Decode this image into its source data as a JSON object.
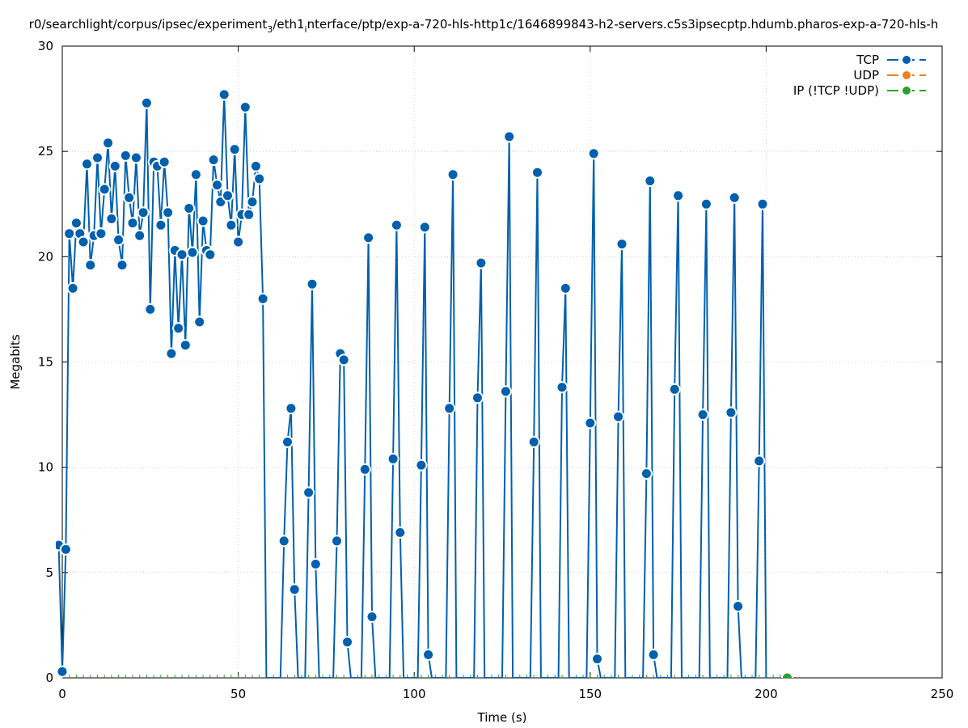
{
  "chart_data": {
    "type": "line",
    "title": "r0/searchlight/corpus/ipsec/experiment",
    "title_sub_1": "3",
    "title_mid": "/eth1",
    "title_sub_2": "i",
    "title_rest": "nterface/ptp/exp-a-720-hls-http1c/1646899843-h2-servers.c5s3ipsecptp.hdumb.pharos-exp-a-720-hls-h",
    "xlabel": "Time (s)",
    "ylabel": "Megabits",
    "xlim": [
      0,
      250
    ],
    "ylim": [
      0,
      30
    ],
    "x_ticks": [
      "0",
      "50",
      "100",
      "150",
      "200",
      "250"
    ],
    "y_ticks": [
      "0",
      "5",
      "10",
      "15",
      "20",
      "25",
      "30"
    ],
    "grid": true,
    "legend_position": "top-right",
    "colors": {
      "tcp": "#0060ad",
      "udp": "#f07f1c",
      "ip": "#2ca02c"
    },
    "series": [
      {
        "name": "TCP",
        "points": [
          [
            -1,
            6.3
          ],
          [
            0,
            0.3
          ],
          [
            1,
            6.1
          ],
          [
            2,
            21.1
          ],
          [
            3,
            18.5
          ],
          [
            4,
            21.6
          ],
          [
            5,
            21.1
          ],
          [
            6,
            20.7
          ],
          [
            7,
            24.4
          ],
          [
            8,
            19.6
          ],
          [
            9,
            21
          ],
          [
            10,
            24.7
          ],
          [
            11,
            21.1
          ],
          [
            12,
            23.2
          ],
          [
            13,
            25.4
          ],
          [
            14,
            21.8
          ],
          [
            15,
            24.3
          ],
          [
            16,
            20.8
          ],
          [
            17,
            19.6
          ],
          [
            18,
            24.8
          ],
          [
            19,
            22.8
          ],
          [
            20,
            21.6
          ],
          [
            21,
            24.7
          ],
          [
            22,
            21
          ],
          [
            23,
            22.1
          ],
          [
            24,
            27.3
          ],
          [
            25,
            17.5
          ],
          [
            26,
            24.5
          ],
          [
            27,
            24.3
          ],
          [
            28,
            21.5
          ],
          [
            29,
            24.5
          ],
          [
            30,
            22.1
          ],
          [
            31,
            15.4
          ],
          [
            32,
            20.3
          ],
          [
            33,
            16.6
          ],
          [
            34,
            20.1
          ],
          [
            35,
            15.8
          ],
          [
            36,
            22.3
          ],
          [
            37,
            20.2
          ],
          [
            38,
            23.9
          ],
          [
            39,
            16.9
          ],
          [
            40,
            21.7
          ],
          [
            41,
            20.3
          ],
          [
            42,
            20.1
          ],
          [
            43,
            24.6
          ],
          [
            44,
            23.4
          ],
          [
            45,
            22.6
          ],
          [
            46,
            27.7
          ],
          [
            47,
            22.9
          ],
          [
            48,
            21.5
          ],
          [
            49,
            25.1
          ],
          [
            50,
            20.7
          ],
          [
            51,
            22
          ],
          [
            52,
            27.1
          ],
          [
            53,
            22
          ],
          [
            54,
            22.6
          ],
          [
            55,
            24.3
          ],
          [
            56,
            23.7
          ],
          [
            57,
            18
          ],
          [
            58,
            0
          ],
          [
            62,
            0
          ],
          [
            63,
            6.5
          ],
          [
            64,
            11.2
          ],
          [
            65,
            12.8
          ],
          [
            66,
            4.2
          ],
          [
            67,
            0
          ],
          [
            69,
            0
          ],
          [
            70,
            8.8
          ],
          [
            71,
            18.7
          ],
          [
            72,
            5.4
          ],
          [
            73,
            0
          ],
          [
            77,
            0
          ],
          [
            78,
            6.5
          ],
          [
            79,
            15.4
          ],
          [
            80,
            15.1
          ],
          [
            81,
            1.7
          ],
          [
            82,
            0
          ],
          [
            85,
            0
          ],
          [
            86,
            9.9
          ],
          [
            87,
            20.9
          ],
          [
            88,
            2.9
          ],
          [
            89,
            0
          ],
          [
            93,
            0
          ],
          [
            94,
            10.4
          ],
          [
            95,
            21.5
          ],
          [
            96,
            6.9
          ],
          [
            97,
            0
          ],
          [
            101,
            0
          ],
          [
            102,
            10.1
          ],
          [
            103,
            21.4
          ],
          [
            104,
            1.1
          ],
          [
            105,
            0
          ],
          [
            109,
            0
          ],
          [
            110,
            12.8
          ],
          [
            111,
            23.9
          ],
          [
            112,
            0
          ],
          [
            117,
            0
          ],
          [
            118,
            13.3
          ],
          [
            119,
            19.7
          ],
          [
            120,
            0
          ],
          [
            125,
            0
          ],
          [
            126,
            13.6
          ],
          [
            127,
            25.7
          ],
          [
            128,
            0
          ],
          [
            133,
            0
          ],
          [
            134,
            11.2
          ],
          [
            135,
            24
          ],
          [
            136,
            0
          ],
          [
            141,
            0
          ],
          [
            142,
            13.8
          ],
          [
            143,
            18.5
          ],
          [
            144,
            0
          ],
          [
            149,
            0
          ],
          [
            150,
            12.1
          ],
          [
            151,
            24.9
          ],
          [
            152,
            0.9
          ],
          [
            153,
            0
          ],
          [
            157,
            0
          ],
          [
            158,
            12.4
          ],
          [
            159,
            20.6
          ],
          [
            160,
            0
          ],
          [
            165,
            0
          ],
          [
            166,
            9.7
          ],
          [
            167,
            23.6
          ],
          [
            168,
            1.1
          ],
          [
            169,
            0
          ],
          [
            173,
            0
          ],
          [
            174,
            13.7
          ],
          [
            175,
            22.9
          ],
          [
            176,
            0
          ],
          [
            181,
            0
          ],
          [
            182,
            12.5
          ],
          [
            183,
            22.5
          ],
          [
            184,
            0
          ],
          [
            189,
            0
          ],
          [
            190,
            12.6
          ],
          [
            191,
            22.8
          ],
          [
            192,
            3.4
          ],
          [
            193,
            0
          ],
          [
            197,
            0
          ],
          [
            198,
            10.3
          ],
          [
            199,
            22.5
          ],
          [
            200,
            0
          ]
        ]
      },
      {
        "name": "UDP",
        "points": []
      },
      {
        "name": "IP (!TCP  !UDP)",
        "points": [
          [
            206,
            0
          ]
        ]
      }
    ]
  }
}
